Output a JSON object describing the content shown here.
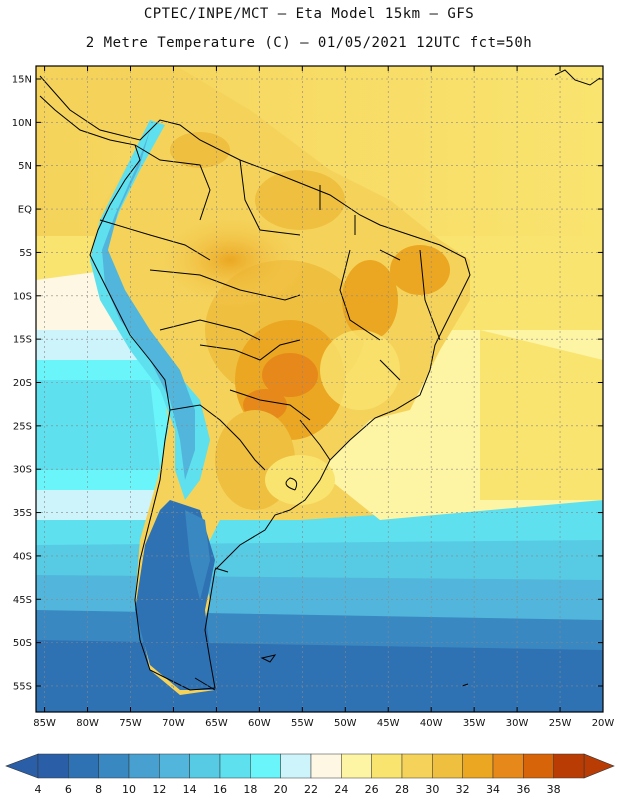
{
  "header": {
    "line1": "CPTEC/INPE/MCT –  Eta Model 15km – GFS",
    "line2": "2 Metre Temperature (C) – 01/05/2021 12UTC fct=50h"
  },
  "axes": {
    "lat_labels": [
      "15N",
      "10N",
      "5N",
      "EQ",
      "5S",
      "10S",
      "15S",
      "20S",
      "25S",
      "30S",
      "35S",
      "40S",
      "45S",
      "50S",
      "55S"
    ],
    "lon_labels": [
      "85W",
      "80W",
      "75W",
      "70W",
      "65W",
      "60W",
      "55W",
      "50W",
      "45W",
      "40W",
      "35W",
      "30W",
      "25W",
      "20W"
    ]
  },
  "map_extent": {
    "lon_range": [
      -86,
      -20
    ],
    "lat_range": [
      -58,
      16.5
    ]
  },
  "colorbar": {
    "labels": [
      "4",
      "6",
      "8",
      "10",
      "12",
      "14",
      "16",
      "18",
      "20",
      "22",
      "24",
      "26",
      "28",
      "30",
      "32",
      "34",
      "36",
      "38"
    ],
    "colors": [
      "#2a5fa8",
      "#2f72b4",
      "#3a88c2",
      "#47a0cf",
      "#52b6dc",
      "#57cbe4",
      "#5ee0ee",
      "#6af5fa",
      "#cdf4fb",
      "#fdf7e3",
      "#fdf4a4",
      "#f9e46f",
      "#f5d35b",
      "#efbf3f",
      "#eba722",
      "#e6891a",
      "#d8640a",
      "#b93c05"
    ],
    "under_color": "#2a5fa8",
    "over_color": "#b93c05"
  }
}
